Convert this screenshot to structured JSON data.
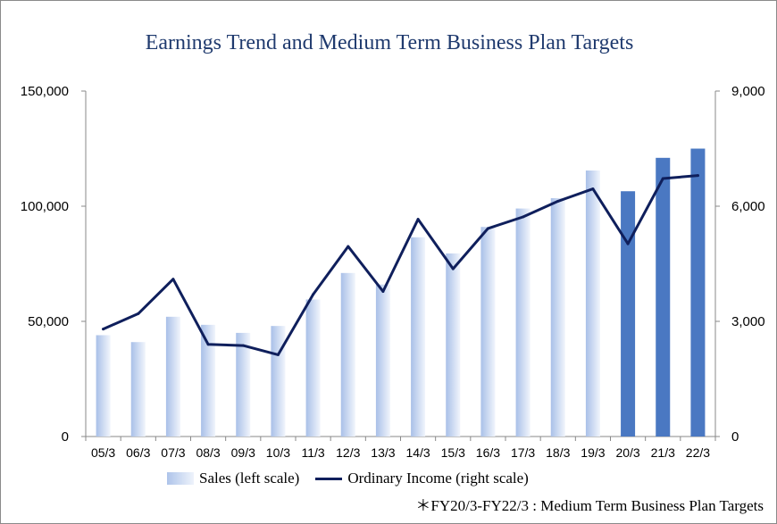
{
  "chart_data": {
    "type": "bar",
    "title": "Earnings Trend and Medium Term Business Plan Targets",
    "categories": [
      "05/3",
      "06/3",
      "07/3",
      "08/3",
      "09/3",
      "10/3",
      "11/3",
      "12/3",
      "13/3",
      "14/3",
      "15/3",
      "16/3",
      "17/3",
      "18/3",
      "19/3",
      "20/3",
      "21/3",
      "22/3"
    ],
    "series": [
      {
        "name": "Sales (left scale)",
        "type": "bar",
        "axis": "left",
        "values": [
          44000,
          41000,
          52000,
          48500,
          45000,
          48000,
          59500,
          71000,
          66000,
          86500,
          79500,
          91000,
          99000,
          103500,
          115500,
          106500,
          121000,
          125000
        ],
        "target_flags": [
          false,
          false,
          false,
          false,
          false,
          false,
          false,
          false,
          false,
          false,
          false,
          false,
          false,
          false,
          false,
          true,
          true,
          true
        ]
      },
      {
        "name": "Ordinary Income (right scale)",
        "type": "line",
        "axis": "right",
        "values": [
          2800,
          3200,
          4100,
          2400,
          2370,
          2130,
          3700,
          4950,
          3780,
          5660,
          4370,
          5420,
          5720,
          6130,
          6450,
          5020,
          6720,
          6800
        ]
      }
    ],
    "y_left": {
      "ylim": [
        0,
        150000
      ],
      "ticks": [
        "0",
        "50,000",
        "100,000",
        "150,000"
      ]
    },
    "y_right": {
      "ylim": [
        0,
        9000
      ],
      "ticks": [
        "0",
        "3,000",
        "6,000",
        "9,000"
      ]
    },
    "note": "＊FY20/3-FY22/3 : Medium Term Business Plan Targets",
    "grid": false,
    "legend_position": "bottom",
    "colors": {
      "bar_actual_edge": "#a9c0e8",
      "bar_actual_light": "#f1f5fc",
      "bar_target": "#4a78c2",
      "line": "#0f1f5c",
      "title": "#1f3a6e"
    }
  }
}
